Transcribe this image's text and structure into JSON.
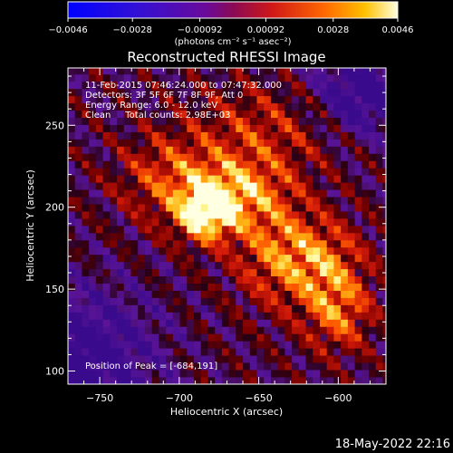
{
  "chart_data": {
    "type": "heatmap",
    "title": "Reconstructed RHESSI Image",
    "xlabel": "Heliocentric X (arcsec)",
    "ylabel": "Heliocentric Y (arcsec)",
    "xlim": [
      -770,
      -570
    ],
    "ylim": [
      92,
      285
    ],
    "x_ticks": [
      -750,
      -700,
      -650,
      -600
    ],
    "y_ticks": [
      100,
      150,
      200,
      250
    ],
    "x_tick_labels": [
      "−750",
      "−700",
      "−650",
      "−600"
    ],
    "y_tick_labels": [
      "100",
      "150",
      "200",
      "250"
    ],
    "colorbar": {
      "range": [
        -0.0046,
        0.0046
      ],
      "ticks": [
        -0.0046,
        -0.0028,
        -0.00092,
        0.00092,
        0.0028,
        0.0046
      ],
      "tick_labels": [
        "−0.0046",
        "−0.0028",
        "−0.00092",
        "0.00092",
        "0.0028",
        "0.0046"
      ],
      "unit_label": "(photons cm⁻² s⁻¹ asec⁻²)"
    },
    "annotations": [
      "11-Feb-2015 07:46:24.000 to 07:47:32.000",
      "Detectors: 3F 5F 6F 7F 8F 9F, Att 0",
      "Energy Range: 6.0 - 12.0 keV",
      "Clean     Total counts: 2.98E+03"
    ],
    "peak_text": "Position of Peak = [-684,191]",
    "peak": {
      "x": -684,
      "y": 191
    },
    "sources": [
      {
        "x": -683,
        "y": 197,
        "sx": 13,
        "sy": 12,
        "amp": 1.0
      },
      {
        "x": -662,
        "y": 210,
        "sx": 20,
        "sy": 14,
        "amp": 0.55
      },
      {
        "x": -705,
        "y": 218,
        "sx": 22,
        "sy": 18,
        "amp": 0.45
      },
      {
        "x": -640,
        "y": 175,
        "sx": 18,
        "sy": 22,
        "amp": 0.5
      },
      {
        "x": -610,
        "y": 165,
        "sx": 18,
        "sy": 18,
        "amp": 0.55
      },
      {
        "x": -600,
        "y": 135,
        "sx": 14,
        "sy": 16,
        "amp": 0.5
      },
      {
        "x": -650,
        "y": 245,
        "sx": 30,
        "sy": 20,
        "amp": 0.35
      }
    ]
  },
  "footer": {
    "timestamp": "18-May-2022 22:16"
  }
}
